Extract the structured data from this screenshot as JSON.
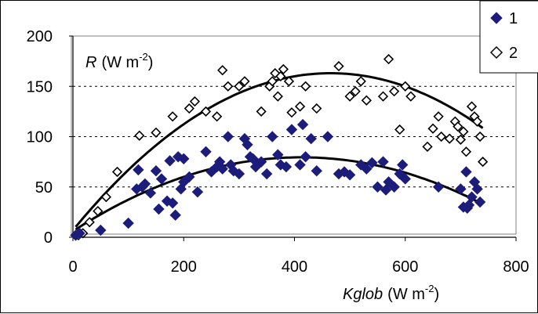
{
  "chart_data": {
    "type": "scatter",
    "title": "",
    "xlabel": {
      "var": "Kglob",
      "unit": "(W m",
      "exp": "-2",
      "close": ")"
    },
    "ylabel": {
      "var": "R",
      "unit": "(W m",
      "exp": "-2",
      "close": ")"
    },
    "xlim": [
      0,
      800
    ],
    "ylim": [
      0,
      200
    ],
    "xticks": [
      0,
      200,
      400,
      600,
      800
    ],
    "yticks": [
      0,
      50,
      100,
      150,
      200
    ],
    "grid": "horizontal dashed",
    "legend_position": "top-right",
    "colors": {
      "series1": "#1c1c7a",
      "series2": "#000000",
      "fit": "#000000",
      "grid": "#000000"
    },
    "series": [
      {
        "name": "1",
        "marker": "filled-diamond",
        "points": [
          [
            5,
            2
          ],
          [
            12,
            4
          ],
          [
            50,
            7
          ],
          [
            100,
            14
          ],
          [
            115,
            48
          ],
          [
            118,
            67
          ],
          [
            125,
            50
          ],
          [
            130,
            53
          ],
          [
            140,
            44
          ],
          [
            150,
            66
          ],
          [
            155,
            28
          ],
          [
            160,
            58
          ],
          [
            170,
            36
          ],
          [
            175,
            76
          ],
          [
            180,
            34
          ],
          [
            185,
            22
          ],
          [
            190,
            80
          ],
          [
            195,
            48
          ],
          [
            200,
            55
          ],
          [
            200,
            78
          ],
          [
            210,
            60
          ],
          [
            225,
            45
          ],
          [
            240,
            85
          ],
          [
            250,
            65
          ],
          [
            260,
            70
          ],
          [
            265,
            75
          ],
          [
            270,
            68
          ],
          [
            280,
            100
          ],
          [
            285,
            72
          ],
          [
            290,
            66
          ],
          [
            300,
            63
          ],
          [
            310,
            98
          ],
          [
            315,
            92
          ],
          [
            320,
            80
          ],
          [
            325,
            78
          ],
          [
            330,
            70
          ],
          [
            340,
            75
          ],
          [
            350,
            63
          ],
          [
            360,
            100
          ],
          [
            370,
            82
          ],
          [
            375,
            72
          ],
          [
            385,
            70
          ],
          [
            395,
            107
          ],
          [
            410,
            72
          ],
          [
            415,
            112
          ],
          [
            420,
            80
          ],
          [
            430,
            98
          ],
          [
            440,
            66
          ],
          [
            460,
            100
          ],
          [
            480,
            63
          ],
          [
            490,
            65
          ],
          [
            500,
            62
          ],
          [
            520,
            72
          ],
          [
            530,
            68
          ],
          [
            540,
            74
          ],
          [
            550,
            50
          ],
          [
            560,
            75
          ],
          [
            565,
            47
          ],
          [
            570,
            55
          ],
          [
            580,
            50
          ],
          [
            590,
            63
          ],
          [
            595,
            72
          ],
          [
            600,
            58
          ],
          [
            660,
            50
          ],
          [
            700,
            48
          ],
          [
            705,
            30
          ],
          [
            710,
            65
          ],
          [
            712,
            29
          ],
          [
            715,
            32
          ],
          [
            720,
            40
          ],
          [
            725,
            55
          ],
          [
            730,
            48
          ],
          [
            735,
            35
          ]
        ]
      },
      {
        "name": "2",
        "marker": "open-diamond",
        "points": [
          [
            10,
            2
          ],
          [
            18,
            4
          ],
          [
            30,
            15
          ],
          [
            45,
            26
          ],
          [
            60,
            40
          ],
          [
            80,
            65
          ],
          [
            120,
            101
          ],
          [
            150,
            104
          ],
          [
            180,
            120
          ],
          [
            210,
            128
          ],
          [
            220,
            135
          ],
          [
            240,
            125
          ],
          [
            260,
            120
          ],
          [
            270,
            166
          ],
          [
            280,
            150
          ],
          [
            300,
            150
          ],
          [
            310,
            155
          ],
          [
            340,
            125
          ],
          [
            355,
            150
          ],
          [
            360,
            155
          ],
          [
            365,
            163
          ],
          [
            370,
            140
          ],
          [
            375,
            160
          ],
          [
            380,
            167
          ],
          [
            390,
            155
          ],
          [
            395,
            124
          ],
          [
            410,
            130
          ],
          [
            420,
            150
          ],
          [
            440,
            128
          ],
          [
            480,
            170
          ],
          [
            500,
            140
          ],
          [
            510,
            145
          ],
          [
            520,
            155
          ],
          [
            530,
            136
          ],
          [
            560,
            140
          ],
          [
            570,
            177
          ],
          [
            580,
            145
          ],
          [
            590,
            107
          ],
          [
            600,
            150
          ],
          [
            610,
            140
          ],
          [
            640,
            90
          ],
          [
            650,
            108
          ],
          [
            660,
            120
          ],
          [
            665,
            100
          ],
          [
            680,
            98
          ],
          [
            690,
            115
          ],
          [
            695,
            110
          ],
          [
            700,
            97
          ],
          [
            705,
            105
          ],
          [
            710,
            85
          ],
          [
            720,
            130
          ],
          [
            725,
            120
          ],
          [
            730,
            115
          ],
          [
            735,
            100
          ],
          [
            740,
            75
          ]
        ]
      }
    ],
    "fits": [
      {
        "name": "1",
        "coef": [
          6,
          0.3567,
          -0.000433
        ]
      },
      {
        "name": "2",
        "coef": [
          7,
          0.6708,
          -0.000721
        ]
      }
    ]
  }
}
